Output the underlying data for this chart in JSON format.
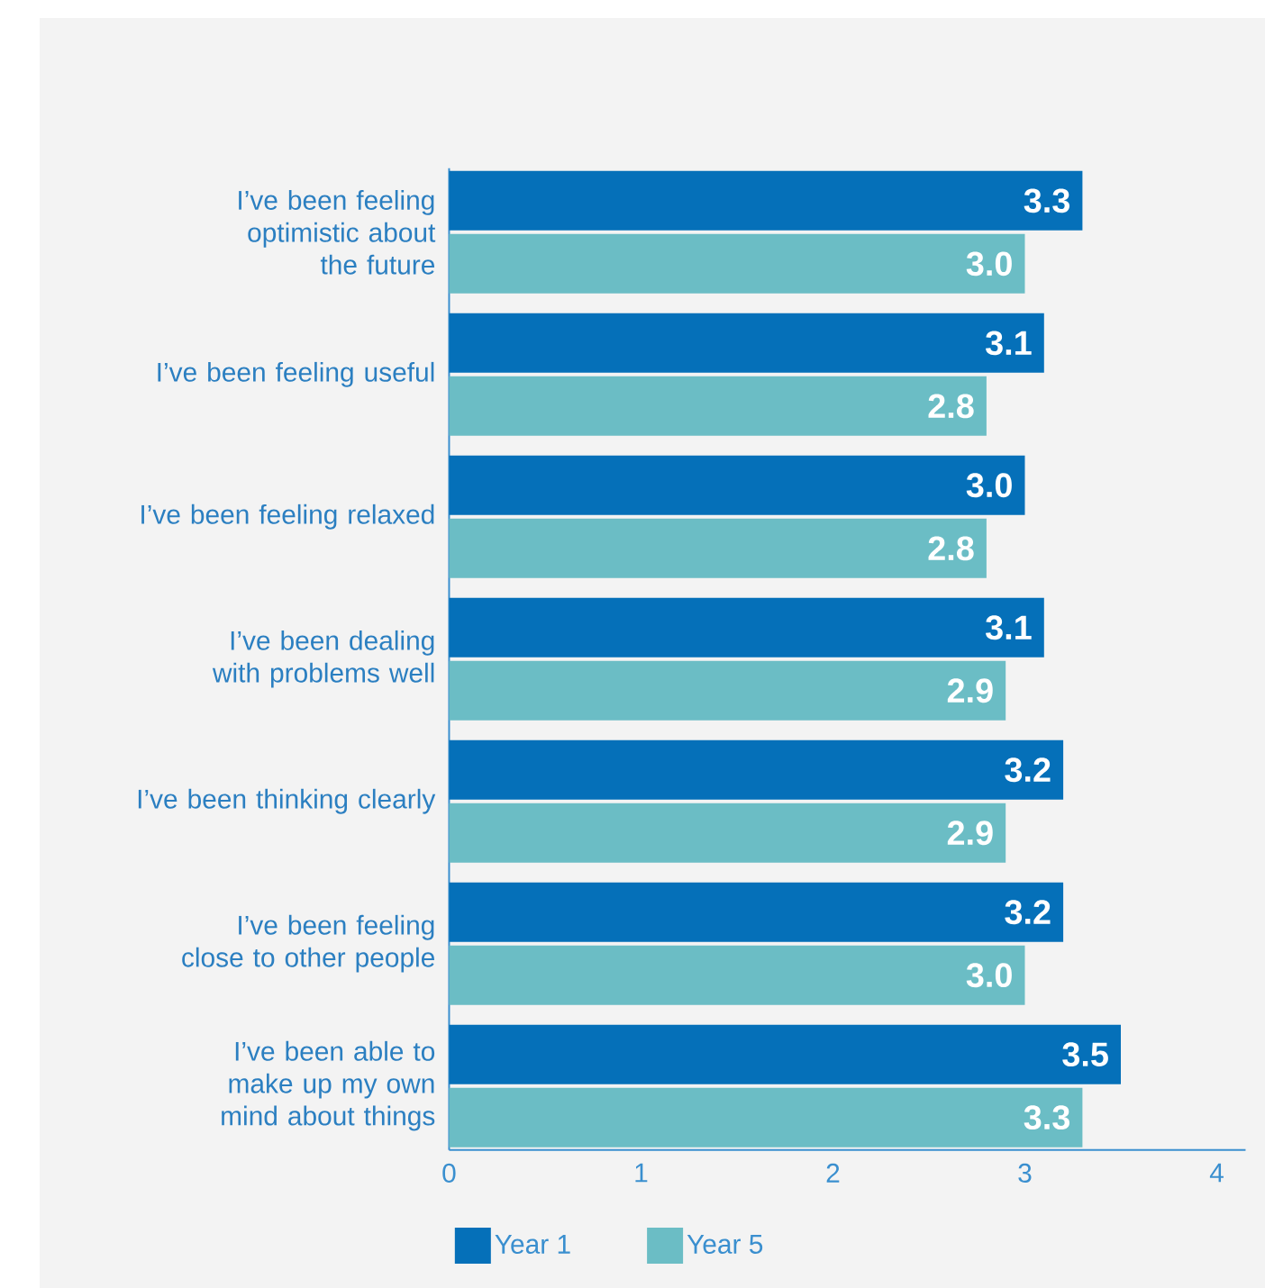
{
  "chart_data": {
    "type": "bar",
    "orientation": "horizontal",
    "categories": [
      "I’ve been feeling optimistic about the future",
      "I’ve been feeling useful",
      "I’ve been feeling relaxed",
      "I’ve been dealing with problems well",
      "I’ve been thinking clearly",
      "I’ve been feeling close to other people",
      "I’ve been able to make up my own mind about things"
    ],
    "series": [
      {
        "name": "Year 1",
        "color": "#0570b9",
        "values": [
          3.3,
          3.1,
          3.0,
          3.1,
          3.2,
          3.2,
          3.5
        ],
        "value_labels": [
          "3.3",
          "3.1",
          "3.0",
          "3.1",
          "3.2",
          "3.2",
          "3.5"
        ]
      },
      {
        "name": "Year 5",
        "color": "#6bbdc5",
        "values": [
          3.0,
          2.8,
          2.8,
          2.9,
          2.9,
          3.0,
          3.3
        ],
        "value_labels": [
          "3.0",
          "2.8",
          "2.8",
          "2.9",
          "2.9",
          "3.0",
          "3.3"
        ]
      }
    ],
    "xlim": [
      0,
      4.15
    ],
    "xticks": [
      0,
      1,
      2,
      3,
      4
    ],
    "legend": "bottom",
    "grid": false
  }
}
